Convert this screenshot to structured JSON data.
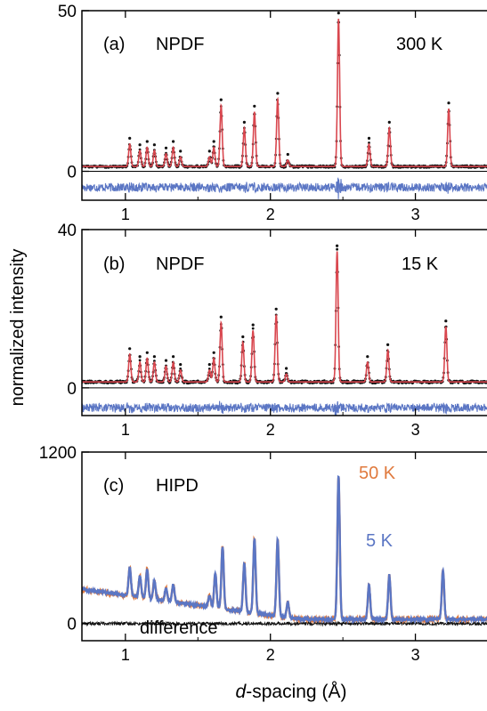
{
  "figure": {
    "ylabel": "normalized intensity",
    "xlabel_italic": "d",
    "xlabel_rest": "-spacing (Å)"
  },
  "colors": {
    "observed": "#111111",
    "calculated": "#d9474f",
    "difference": "#5b76c4",
    "blue_trace": "#5b76c4",
    "orange_label": "#e07a3e",
    "black_diff": "#111111"
  },
  "chart_data": [
    {
      "type": "line",
      "panel": "(a)",
      "label": "NPDF",
      "temperature": "300 K",
      "xlim": [
        0.7,
        3.5
      ],
      "ylim": [
        -9,
        50
      ],
      "xticks": [
        1,
        2,
        3
      ],
      "xtick_labels": [
        "1",
        "2",
        "3"
      ],
      "yticks": [
        0,
        50
      ],
      "ytick_labels": [
        "0",
        "50"
      ],
      "baseline": 1.5,
      "difference_offset": -5,
      "peaks": [
        {
          "d": 1.03,
          "h": 7
        },
        {
          "d": 1.1,
          "h": 5
        },
        {
          "d": 1.15,
          "h": 6
        },
        {
          "d": 1.2,
          "h": 5
        },
        {
          "d": 1.28,
          "h": 4
        },
        {
          "d": 1.33,
          "h": 6
        },
        {
          "d": 1.38,
          "h": 3
        },
        {
          "d": 1.58,
          "h": 3
        },
        {
          "d": 1.61,
          "h": 6
        },
        {
          "d": 1.66,
          "h": 19
        },
        {
          "d": 1.82,
          "h": 12
        },
        {
          "d": 1.89,
          "h": 17
        },
        {
          "d": 2.05,
          "h": 21
        },
        {
          "d": 2.12,
          "h": 2
        },
        {
          "d": 2.47,
          "h": 46
        },
        {
          "d": 2.68,
          "h": 7
        },
        {
          "d": 2.82,
          "h": 12
        },
        {
          "d": 3.23,
          "h": 18
        }
      ]
    },
    {
      "type": "line",
      "panel": "(b)",
      "label": "NPDF",
      "temperature": "15 K",
      "xlim": [
        0.7,
        3.5
      ],
      "ylim": [
        -7,
        40
      ],
      "xticks": [
        1,
        2,
        3
      ],
      "xtick_labels": [
        "1",
        "2",
        "3"
      ],
      "yticks": [
        0,
        40
      ],
      "ytick_labels": [
        "0",
        "40"
      ],
      "baseline": 1.5,
      "difference_offset": -5,
      "peaks": [
        {
          "d": 1.03,
          "h": 7
        },
        {
          "d": 1.1,
          "h": 5
        },
        {
          "d": 1.15,
          "h": 6
        },
        {
          "d": 1.2,
          "h": 5
        },
        {
          "d": 1.28,
          "h": 4
        },
        {
          "d": 1.33,
          "h": 5
        },
        {
          "d": 1.38,
          "h": 3
        },
        {
          "d": 1.58,
          "h": 3
        },
        {
          "d": 1.61,
          "h": 6
        },
        {
          "d": 1.66,
          "h": 15
        },
        {
          "d": 1.81,
          "h": 10
        },
        {
          "d": 1.88,
          "h": 13
        },
        {
          "d": 2.04,
          "h": 17
        },
        {
          "d": 2.11,
          "h": 2
        },
        {
          "d": 2.46,
          "h": 33
        },
        {
          "d": 2.67,
          "h": 5
        },
        {
          "d": 2.81,
          "h": 8
        },
        {
          "d": 3.21,
          "h": 14
        }
      ]
    },
    {
      "type": "line",
      "panel": "(c)",
      "label": "HIPD",
      "temperatures": [
        "50 K",
        "5 K"
      ],
      "difference_label": "difference",
      "xlim": [
        0.7,
        3.5
      ],
      "ylim": [
        -120,
        1200
      ],
      "xticks": [
        1,
        2,
        3
      ],
      "xtick_labels": [
        "1",
        "2",
        "3"
      ],
      "yticks": [
        0,
        1200
      ],
      "ytick_labels": [
        "0",
        "1200"
      ],
      "baseline": 30,
      "difference_offset": 0,
      "peaks": [
        {
          "d": 1.03,
          "h": 200
        },
        {
          "d": 1.1,
          "h": 150
        },
        {
          "d": 1.15,
          "h": 200
        },
        {
          "d": 1.2,
          "h": 130
        },
        {
          "d": 1.28,
          "h": 90
        },
        {
          "d": 1.33,
          "h": 120
        },
        {
          "d": 1.58,
          "h": 80
        },
        {
          "d": 1.62,
          "h": 240
        },
        {
          "d": 1.67,
          "h": 430
        },
        {
          "d": 1.82,
          "h": 340
        },
        {
          "d": 1.89,
          "h": 520
        },
        {
          "d": 2.05,
          "h": 540
        },
        {
          "d": 2.12,
          "h": 110
        },
        {
          "d": 2.47,
          "h": 1000
        },
        {
          "d": 2.68,
          "h": 240
        },
        {
          "d": 2.82,
          "h": 310
        },
        {
          "d": 3.19,
          "h": 340
        }
      ]
    }
  ]
}
